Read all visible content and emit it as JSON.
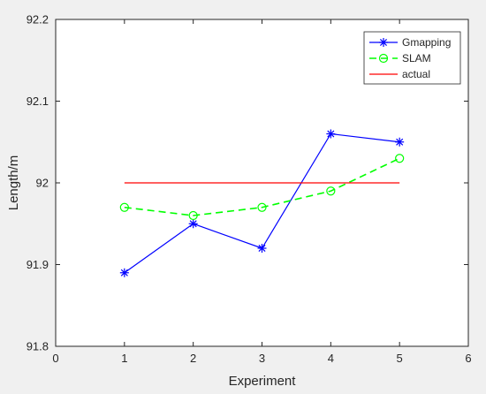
{
  "chart_data": {
    "type": "line",
    "xlabel": "Experiment",
    "ylabel": "Length/m",
    "xlim": [
      0,
      6
    ],
    "ylim": [
      91.8,
      92.2
    ],
    "x_ticks": [
      "0",
      "1",
      "2",
      "3",
      "4",
      "5",
      "6"
    ],
    "y_ticks": [
      "91.8",
      "91.9",
      "92",
      "92.1",
      "92.2"
    ],
    "grid": false,
    "legend_position": "top-right",
    "series": [
      {
        "name": "Gmapping",
        "x": [
          1,
          2,
          3,
          4,
          5
        ],
        "values": [
          91.89,
          91.95,
          91.92,
          92.06,
          92.05
        ],
        "color": "#0000ff",
        "marker": "asterisk",
        "line_style": "solid"
      },
      {
        "name": "SLAM",
        "x": [
          1,
          2,
          3,
          4,
          5
        ],
        "values": [
          91.97,
          91.96,
          91.97,
          91.99,
          92.03
        ],
        "color": "#00ff00",
        "marker": "circle",
        "line_style": "dashed"
      },
      {
        "name": "actual",
        "x": [
          1,
          5
        ],
        "values": [
          92.0,
          92.0
        ],
        "color": "#ff0000",
        "marker": "none",
        "line_style": "solid"
      }
    ]
  }
}
